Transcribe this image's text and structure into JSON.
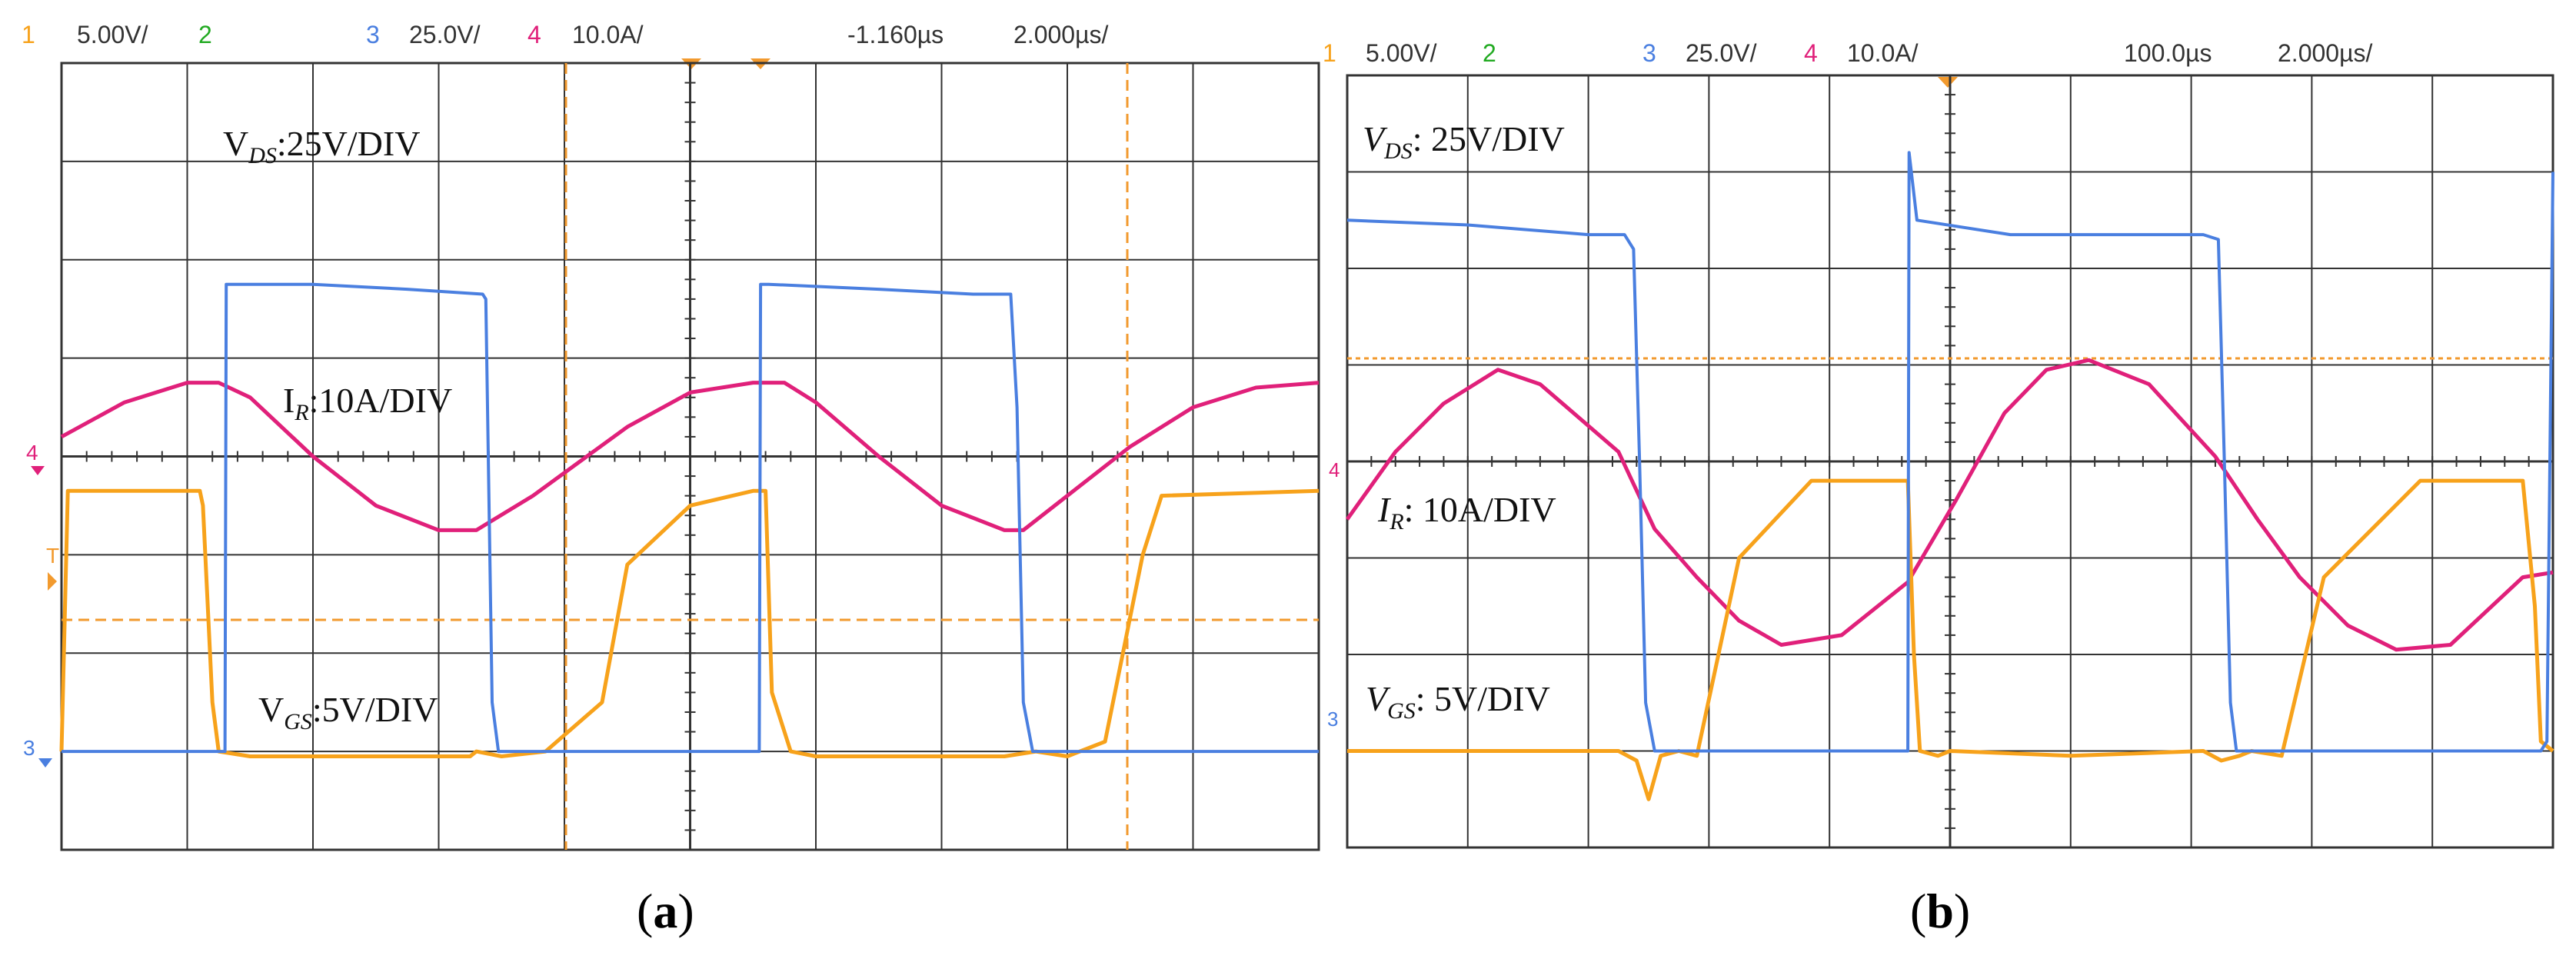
{
  "colors": {
    "ch1": "#f7a21b",
    "ch2": "#22aa22",
    "ch3": "#4a7fe0",
    "ch4": "#e0207a",
    "cursor": "#f29a2e",
    "grid": "#333333"
  },
  "chart_data": [
    {
      "type": "line",
      "panel": "a",
      "caption": {
        "open": "(",
        "letter": "a",
        "close": ")"
      },
      "header": {
        "ch1": {
          "num": "1",
          "scale": "5.00V/"
        },
        "ch2": {
          "num": "2"
        },
        "ch3": {
          "num": "3",
          "scale": "25.0V/"
        },
        "ch4": {
          "num": "4",
          "scale": "10.0A/"
        },
        "trigger": "-1.160µs",
        "timebase": "2.000µs/"
      },
      "annotations": {
        "vds": {
          "main": "V",
          "sub": "DS",
          "text": ":25V/DIV"
        },
        "ir": {
          "main": "I",
          "sub": "R",
          "text": ":10A/DIV"
        },
        "vgs": {
          "main": "V",
          "sub": "GS",
          "text": ":5V/DIV"
        }
      },
      "markers": {
        "ch4": "4",
        "ch3": "3",
        "trig": "T"
      },
      "xlim": [
        0,
        20
      ],
      "ylim": [
        -4,
        4
      ],
      "xunit": "µs per div: 2",
      "yunit": "div",
      "series": [
        {
          "name": "V_DS",
          "channel": 3,
          "x": [
            0,
            2.5,
            2.6,
            2.62,
            2.75,
            4,
            5.5,
            6.7,
            6.75,
            6.85,
            6.95,
            9,
            11,
            11.1,
            11.12,
            11.25,
            13,
            14.5,
            15.1,
            15.2,
            15.3,
            15.45,
            20
          ],
          "y": [
            -3.0,
            -3.0,
            -3.0,
            1.75,
            1.75,
            1.75,
            1.7,
            1.65,
            1.6,
            -2.5,
            -3.0,
            -3.0,
            -3.0,
            -3.0,
            1.75,
            1.75,
            1.7,
            1.65,
            1.65,
            0.5,
            -2.5,
            -3.0,
            -3.0
          ]
        },
        {
          "name": "I_R",
          "channel": 4,
          "x": [
            0,
            1,
            2,
            2.5,
            3,
            4,
            5,
            6,
            6.6,
            7.5,
            9,
            10,
            11,
            11.5,
            12,
            13,
            14,
            15,
            15.3,
            16,
            17,
            18,
            19,
            20
          ],
          "y": [
            0.2,
            0.55,
            0.75,
            0.75,
            0.6,
            0.0,
            -0.5,
            -0.75,
            -0.75,
            -0.4,
            0.3,
            0.65,
            0.75,
            0.75,
            0.55,
            0.0,
            -0.5,
            -0.75,
            -0.75,
            -0.4,
            0.1,
            0.5,
            0.7,
            0.75
          ]
        },
        {
          "name": "V_GS",
          "channel": 1,
          "x": [
            0,
            0.1,
            2.2,
            2.25,
            2.4,
            2.5,
            3,
            6.5,
            6.6,
            7,
            7.7,
            8.6,
            9,
            10,
            11,
            11.2,
            11.3,
            11.6,
            12,
            15,
            15.5,
            16,
            16.6,
            17.2,
            17.5,
            20
          ],
          "y": [
            -3.0,
            -0.35,
            -0.35,
            -0.5,
            -2.5,
            -3.0,
            -3.05,
            -3.05,
            -3.0,
            -3.05,
            -3.0,
            -2.5,
            -1.1,
            -0.5,
            -0.35,
            -0.35,
            -2.4,
            -3.0,
            -3.05,
            -3.05,
            -3.0,
            -3.05,
            -2.9,
            -1.0,
            -0.4,
            -0.35
          ]
        }
      ]
    },
    {
      "type": "line",
      "panel": "b",
      "caption": {
        "open": "(",
        "letter": "b",
        "close": ")"
      },
      "header": {
        "ch1": {
          "num": "1",
          "scale": "5.00V/"
        },
        "ch2": {
          "num": "2"
        },
        "ch3": {
          "num": "3",
          "scale": "25.0V/"
        },
        "ch4": {
          "num": "4",
          "scale": "10.0A/"
        },
        "trigger": "100.0µs",
        "timebase": "2.000µs/"
      },
      "annotations": {
        "vds": {
          "main": "V",
          "sub": "DS",
          "text": ": 25V/DIV"
        },
        "ir": {
          "main": "I",
          "sub": "R",
          "text": ": 10A/DIV"
        },
        "vgs": {
          "main": "V",
          "sub": "GS",
          "text": ": 5V/DIV"
        }
      },
      "markers": {
        "ch4": "4",
        "ch3": "3"
      },
      "xlim": [
        0,
        20
      ],
      "ylim": [
        -4,
        4
      ],
      "xunit": "µs per div: 2",
      "yunit": "div",
      "series": [
        {
          "name": "V_DS",
          "channel": 3,
          "x": [
            0,
            2,
            4,
            4.6,
            4.75,
            4.85,
            4.95,
            5.1,
            9.2,
            9.3,
            9.32,
            9.45,
            11,
            14.2,
            14.45,
            14.55,
            14.65,
            14.75,
            19.8,
            19.9,
            20
          ],
          "y": [
            2.5,
            2.45,
            2.35,
            2.35,
            2.2,
            0.0,
            -2.5,
            -3.0,
            -3.0,
            -3.0,
            3.2,
            2.5,
            2.35,
            2.35,
            2.3,
            0.0,
            -2.5,
            -3.0,
            -3.0,
            -2.9,
            3.0
          ]
        },
        {
          "name": "I_R",
          "channel": 4,
          "x": [
            0,
            0.8,
            1.6,
            2.5,
            3.2,
            4.5,
            5.1,
            5.8,
            6.5,
            7.2,
            8.2,
            9.3,
            10.1,
            10.9,
            11.6,
            12.3,
            13.3,
            14.4,
            15.1,
            15.8,
            16.6,
            17.4,
            18.3,
            19.5,
            20
          ],
          "y": [
            -0.6,
            0.1,
            0.6,
            0.95,
            0.8,
            0.1,
            -0.7,
            -1.2,
            -1.65,
            -1.9,
            -1.8,
            -1.25,
            -0.4,
            0.5,
            0.95,
            1.05,
            0.8,
            0.05,
            -0.6,
            -1.2,
            -1.7,
            -1.95,
            -1.9,
            -1.2,
            -1.15
          ]
        },
        {
          "name": "V_GS",
          "channel": 1,
          "x": [
            0,
            2,
            4.5,
            4.8,
            5,
            5.2,
            5.5,
            5.8,
            6.5,
            7.7,
            9.3,
            9.4,
            9.5,
            9.8,
            10,
            12,
            14.2,
            14.5,
            14.8,
            15,
            15.5,
            16.2,
            17.8,
            19.5,
            19.7,
            19.8,
            20
          ],
          "y": [
            -3.0,
            -3.0,
            -3.0,
            -3.1,
            -3.5,
            -3.05,
            -3.0,
            -3.05,
            -1.0,
            -0.2,
            -0.2,
            -2.0,
            -3.0,
            -3.05,
            -3.0,
            -3.05,
            -3.0,
            -3.1,
            -3.05,
            -3.0,
            -3.05,
            -1.2,
            -0.2,
            -0.2,
            -1.5,
            -2.9,
            -3.0
          ]
        }
      ]
    }
  ]
}
